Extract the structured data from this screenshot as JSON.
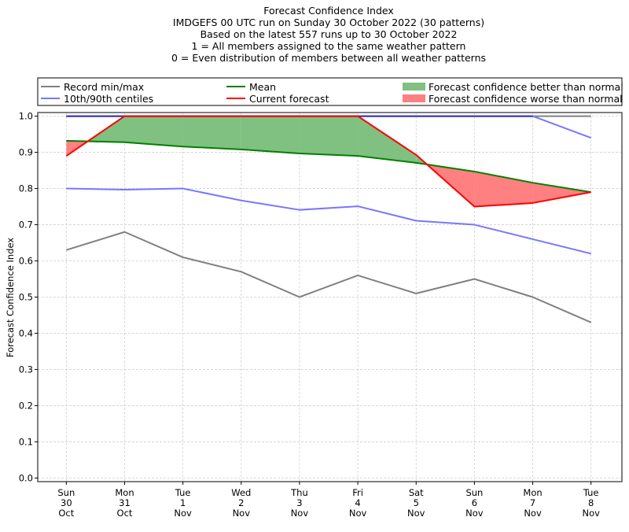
{
  "chart_data": {
    "type": "line",
    "title": "Forecast Confidence Index",
    "subtitles": [
      "IMDGEFS 00 UTC run on Sunday 30 October 2022 (30 patterns)",
      "Based on the latest 557 runs up to 30 October 2022",
      "1 = All members assigned to the same weather pattern",
      "0 = Even distribution of members between all weather patterns"
    ],
    "xlabel": "",
    "ylabel": "Forecast Confidence Index",
    "ylim": [
      -0.01,
      1.01
    ],
    "yticks": [
      "0.0",
      "0.1",
      "0.2",
      "0.3",
      "0.4",
      "0.5",
      "0.6",
      "0.7",
      "0.8",
      "0.9",
      "1.0"
    ],
    "ytick_values": [
      0.0,
      0.1,
      0.2,
      0.3,
      0.4,
      0.5,
      0.6,
      0.7,
      0.8,
      0.9,
      1.0
    ],
    "grid": true,
    "legend_position": "top",
    "categories": [
      [
        "Sun",
        "30",
        "Oct"
      ],
      [
        "Mon",
        "31",
        "Oct"
      ],
      [
        "Tue",
        "1",
        "Nov"
      ],
      [
        "Wed",
        "2",
        "Nov"
      ],
      [
        "Thu",
        "3",
        "Nov"
      ],
      [
        "Fri",
        "4",
        "Nov"
      ],
      [
        "Sat",
        "5",
        "Nov"
      ],
      [
        "Sun",
        "6",
        "Nov"
      ],
      [
        "Mon",
        "7",
        "Nov"
      ],
      [
        "Tue",
        "8",
        "Nov"
      ]
    ],
    "series": [
      {
        "name": "Record min",
        "key": "record_min",
        "color": "#808080",
        "values": [
          0.63,
          0.68,
          0.61,
          0.57,
          0.5,
          0.56,
          0.51,
          0.55,
          0.5,
          0.43
        ]
      },
      {
        "name": "Record max",
        "key": "record_max",
        "color": "#808080",
        "values": [
          1.0,
          1.0,
          1.0,
          1.0,
          1.0,
          1.0,
          1.0,
          1.0,
          1.0,
          1.0
        ]
      },
      {
        "name": "10th centile",
        "key": "p10",
        "color": "#7777ff",
        "values": [
          0.8,
          0.797,
          0.8,
          0.767,
          0.741,
          0.751,
          0.711,
          0.7,
          0.66,
          0.62
        ]
      },
      {
        "name": "90th centile",
        "key": "p90",
        "color": "#7777ff",
        "values": [
          1.0,
          1.0,
          1.0,
          1.0,
          1.0,
          1.0,
          1.0,
          1.0,
          1.0,
          0.94
        ]
      },
      {
        "name": "Mean",
        "key": "mean",
        "color": "#008000",
        "values": [
          0.932,
          0.928,
          0.916,
          0.908,
          0.897,
          0.89,
          0.871,
          0.847,
          0.816,
          0.79
        ]
      },
      {
        "name": "Current forecast",
        "key": "current",
        "color": "#ff0000",
        "values": [
          0.89,
          1.0,
          1.0,
          1.0,
          1.0,
          1.0,
          0.893,
          0.75,
          0.76,
          0.79
        ]
      }
    ],
    "legend": [
      {
        "label": "Record min/max",
        "kind": "line",
        "color": "#808080"
      },
      {
        "label": "10th/90th centiles",
        "kind": "line",
        "color": "#7777ff"
      },
      {
        "label": "Mean",
        "kind": "line",
        "color": "#008000"
      },
      {
        "label": "Current forecast",
        "kind": "line",
        "color": "#ff0000"
      },
      {
        "label": "Forecast confidence better than normal",
        "kind": "patch",
        "color": "#80c080"
      },
      {
        "label": "Forecast confidence worse than normal",
        "kind": "patch",
        "color": "#ff8080"
      }
    ],
    "fill_better_color": "#80c080",
    "fill_worse_color": "#ff8080",
    "overlap_color": "#3333bb"
  }
}
